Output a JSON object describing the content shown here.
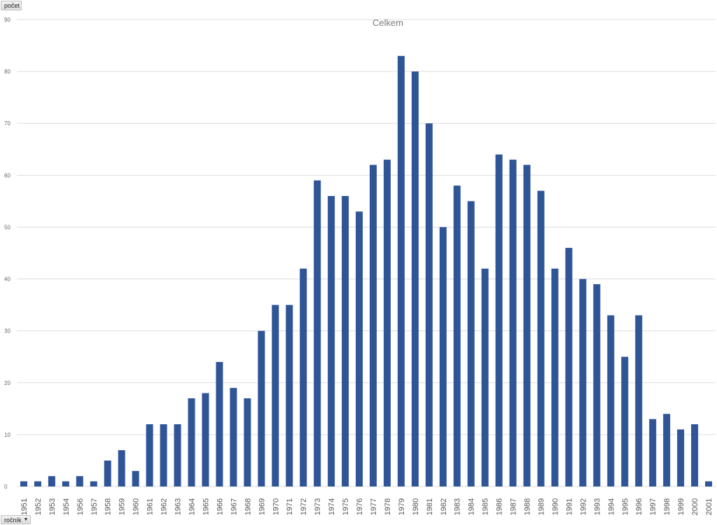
{
  "buttons": {
    "value_field": "počet",
    "axis_field": "ročník"
  },
  "colors": {
    "bar": "#2f5597",
    "grid": "#dddddd"
  },
  "chart_data": {
    "type": "bar",
    "title": "Celkem",
    "xlabel": "",
    "ylabel": "",
    "ylim": [
      0,
      90
    ],
    "yticks": [
      0,
      10,
      20,
      30,
      40,
      50,
      60,
      70,
      80,
      90
    ],
    "grid": true,
    "legend": "none",
    "categories": [
      "1951",
      "1952",
      "1953",
      "1954",
      "1956",
      "1957",
      "1958",
      "1959",
      "1960",
      "1961",
      "1962",
      "1963",
      "1964",
      "1965",
      "1966",
      "1967",
      "1968",
      "1969",
      "1970",
      "1971",
      "1972",
      "1973",
      "1974",
      "1975",
      "1976",
      "1977",
      "1978",
      "1979",
      "1980",
      "1981",
      "1982",
      "1983",
      "1984",
      "1985",
      "1986",
      "1987",
      "1988",
      "1989",
      "1990",
      "1991",
      "1992",
      "1993",
      "1994",
      "1995",
      "1996",
      "1997",
      "1998",
      "1999",
      "2000",
      "2001"
    ],
    "values": [
      1,
      1,
      2,
      1,
      2,
      1,
      5,
      7,
      3,
      12,
      12,
      12,
      17,
      18,
      24,
      19,
      17,
      30,
      35,
      35,
      42,
      59,
      56,
      56,
      53,
      62,
      63,
      83,
      80,
      70,
      50,
      58,
      55,
      42,
      64,
      63,
      62,
      57,
      42,
      46,
      40,
      39,
      33,
      25,
      33,
      13,
      14,
      11,
      12,
      1
    ]
  }
}
